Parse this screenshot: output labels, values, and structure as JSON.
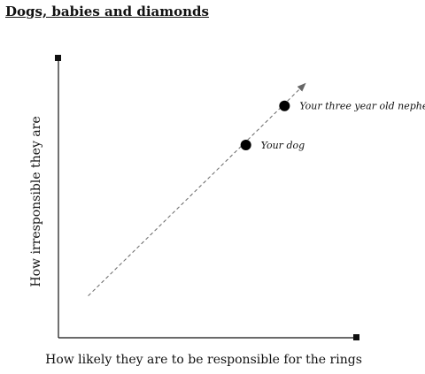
{
  "chart_data": {
    "type": "scatter",
    "title": "Dogs, babies and diamonds",
    "xlabel": "How likely they are to be responsible for the rings",
    "ylabel": "How irresponsible they are",
    "xlim": [
      0,
      10
    ],
    "ylim": [
      0,
      10
    ],
    "grid": false,
    "trend_line": {
      "x": [
        1,
        8.3
      ],
      "y": [
        1.5,
        9.1
      ],
      "style": "dashed-arrow"
    },
    "points": [
      {
        "label": "Your dog",
        "x": 6.3,
        "y": 6.9
      },
      {
        "label": "Your three year old nephew",
        "x": 7.6,
        "y": 8.3
      }
    ]
  }
}
